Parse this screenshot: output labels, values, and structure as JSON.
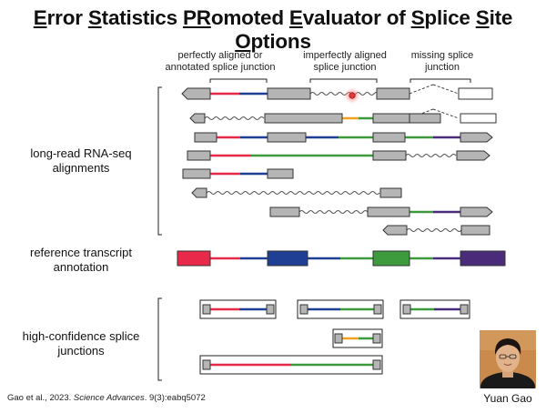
{
  "title": {
    "parts": [
      {
        "u": "E",
        "t": "rror "
      },
      {
        "u": "S",
        "t": "tatistics "
      },
      {
        "u": "PR",
        "t": "omoted "
      },
      {
        "u": "E",
        "t": "valuator of "
      },
      {
        "u": "S",
        "t": "plice "
      },
      {
        "u": "S",
        "t": "ite "
      },
      {
        "u": "O",
        "t": "ptions"
      }
    ]
  },
  "headers": {
    "aligned": "perfectly aligned or annotated splice junction",
    "imperfect": "imperfectly aligned splice junction",
    "missing": "missing splice junction"
  },
  "labels": {
    "longread": "long-read RNA-seq alignments",
    "reference": "reference transcript annotation",
    "highconf": "high-confidence splice junctions"
  },
  "citation": {
    "authors": "Gao et al., 2023. ",
    "journal": "Science Advances",
    "rest": ". 9(3):eabq5072"
  },
  "author_name": "Yuan Gao",
  "colors": {
    "exon_gray": "#b5b5b5",
    "red": "#e8294a",
    "blue": "#1f3f95",
    "green": "#3d9a3d",
    "orange": "#f2a21c",
    "purple": "#4a2b7a",
    "error_marker": "#e23a3a"
  }
}
